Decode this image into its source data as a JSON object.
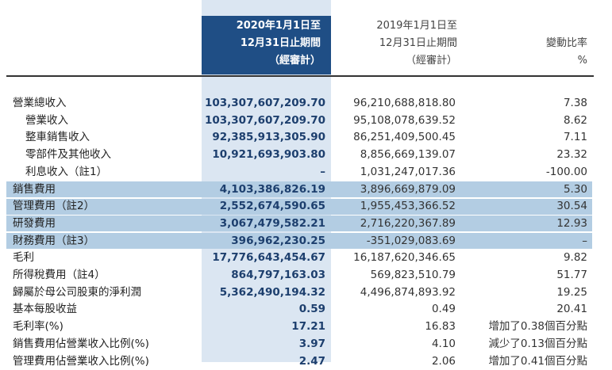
{
  "header": {
    "current": [
      "2020年1月1日至",
      "12月31日止期間",
      "（經審計）"
    ],
    "prior": [
      "2019年1月1日至",
      "12月31日止期間",
      "（經審計）"
    ],
    "change": [
      "變動比率",
      "%"
    ]
  },
  "rows": [
    {
      "label": "營業總收入",
      "cur": "103,307,607,209.70",
      "prior": "96,210,688,818.80",
      "change": "7.38"
    },
    {
      "label": "營業收入",
      "cur": "103,307,607,209.70",
      "prior": "95,108,078,639.52",
      "change": "8.62"
    },
    {
      "label": "整車銷售收入",
      "cur": "92,385,913,305.90",
      "prior": "86,251,409,500.45",
      "change": "7.11"
    },
    {
      "label": "零部件及其他收入",
      "cur": "10,921,693,903.80",
      "prior": "8,856,669,139.07",
      "change": "23.32"
    },
    {
      "label": "利息收入（註1）",
      "cur": "–",
      "prior": "1,031,247,017.36",
      "change": "-100.00"
    },
    {
      "label": "銷售費用",
      "cur": "4,103,386,826.19",
      "prior": "3,896,669,879.09",
      "change": "5.30"
    },
    {
      "label": "管理費用（註2）",
      "cur": "2,552,674,590.65",
      "prior": "1,955,453,366.52",
      "change": "30.54"
    },
    {
      "label": "研發費用",
      "cur": "3,067,479,582.21",
      "prior": "2,716,220,367.89",
      "change": "12.93"
    },
    {
      "label": "財務費用（註3）",
      "cur": "396,962,230.25",
      "prior": "-351,029,083.69",
      "change": "–"
    },
    {
      "label": "毛利",
      "cur": "17,776,643,454.67",
      "prior": "16,187,620,346.65",
      "change": "9.82"
    },
    {
      "label": "所得稅費用（註4）",
      "cur": "864,797,163.03",
      "prior": "569,823,510.79",
      "change": "51.77"
    },
    {
      "label": "歸屬於母公司股東的淨利潤",
      "cur": "5,362,490,194.32",
      "prior": "4,496,874,893.92",
      "change": "19.25"
    },
    {
      "label": "基本每股收益",
      "cur": "0.59",
      "prior": "0.49",
      "change": "20.41"
    },
    {
      "label": "毛利率(%)",
      "cur": "17.21",
      "prior": "16.83",
      "change": "增加了0.38個百分點"
    },
    {
      "label": "銷售費用佔營業收入比例(%)",
      "cur": "3.97",
      "prior": "4.10",
      "change": "減少了0.13個百分點"
    },
    {
      "label": "管理費用佔營業收入比例(%)",
      "cur": "2.47",
      "prior": "2.06",
      "change": "增加了0.41個百分點"
    }
  ]
}
